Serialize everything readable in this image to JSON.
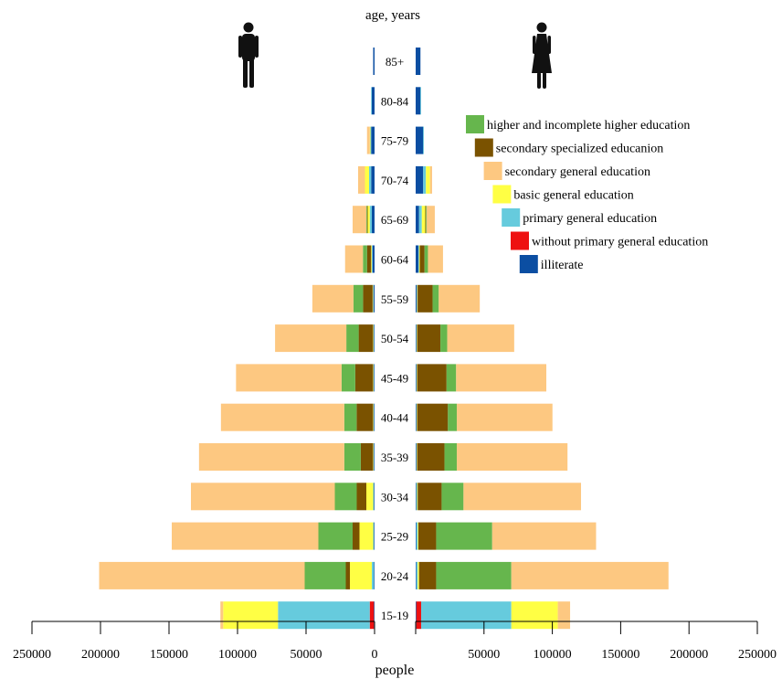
{
  "chart_data": {
    "type": "bar",
    "orientation": "horizontal",
    "layout": "population-pyramid",
    "title": "age, years",
    "xlabel": "people",
    "x_tick_labels": [
      "250000",
      "200000",
      "150000",
      "100000",
      "50000",
      "0",
      "0",
      "50000",
      "100000",
      "150000",
      "200000",
      "250000"
    ],
    "xlim": [
      0,
      250000
    ],
    "categories": [
      "85+",
      "80-84",
      "75-79",
      "70-74",
      "65-69",
      "60-64",
      "55-59",
      "50-54",
      "45-49",
      "40-44",
      "35-39",
      "30-34",
      "25-29",
      "20-24",
      "15-19"
    ],
    "series": [
      {
        "name": "illiterate",
        "color": "#0b4ea2",
        "left": [
          1000,
          2000,
          2500,
          2500,
          2000,
          1500,
          800,
          500,
          500,
          500,
          500,
          500,
          500,
          500,
          500
        ],
        "right": [
          3500,
          3500,
          5500,
          5500,
          2500,
          2000,
          800,
          500,
          500,
          500,
          500,
          500,
          500,
          500,
          500
        ]
      },
      {
        "name": "without primary general education",
        "color": "#ee1111",
        "left": [
          0,
          0,
          0,
          0,
          0,
          0,
          0,
          0,
          0,
          0,
          0,
          0,
          0,
          0,
          3000
        ],
        "right": [
          0,
          0,
          0,
          0,
          0,
          0,
          0,
          0,
          0,
          0,
          0,
          0,
          0,
          0,
          3500
        ]
      },
      {
        "name": "primary general education",
        "color": "#66cbdd",
        "left": [
          0,
          500,
          500,
          1500,
          1500,
          500,
          300,
          300,
          300,
          300,
          300,
          500,
          500,
          1500,
          67000
        ],
        "right": [
          0,
          500,
          500,
          2000,
          2000,
          500,
          300,
          300,
          300,
          300,
          300,
          500,
          1000,
          1000,
          66000
        ]
      },
      {
        "name": "basic general education",
        "color": "#ffff44",
        "left": [
          0,
          0,
          500,
          3000,
          1500,
          500,
          300,
          300,
          300,
          300,
          300,
          5000,
          10000,
          16000,
          40000
        ],
        "right": [
          0,
          0,
          0,
          3000,
          2500,
          500,
          300,
          300,
          300,
          300,
          300,
          500,
          500,
          1000,
          34000
        ]
      },
      {
        "name": "secondary specialized educanion",
        "color": "#7a5200",
        "left": [
          0,
          0,
          0,
          0,
          500,
          3000,
          7000,
          10500,
          13000,
          12000,
          9000,
          7000,
          5000,
          3000,
          0
        ],
        "right": [
          0,
          0,
          0,
          0,
          500,
          3500,
          11000,
          17000,
          21500,
          22500,
          20000,
          17500,
          13000,
          12500,
          0
        ]
      },
      {
        "name": "higher and incomplete higher education",
        "color": "#66b64d",
        "left": [
          0,
          0,
          0,
          0,
          500,
          3000,
          7000,
          9000,
          10000,
          9000,
          12000,
          16000,
          25000,
          30000,
          0
        ],
        "right": [
          0,
          0,
          0,
          0,
          500,
          2500,
          4500,
          5000,
          7000,
          6500,
          9000,
          16000,
          41000,
          55000,
          0
        ]
      },
      {
        "name": "secondary general education",
        "color": "#fdc881",
        "left": [
          0,
          0,
          2000,
          5000,
          10000,
          13000,
          30000,
          52000,
          77000,
          90000,
          106000,
          105000,
          107000,
          150000,
          2000
        ],
        "right": [
          0,
          0,
          0,
          1500,
          6000,
          11000,
          30000,
          49000,
          66000,
          70000,
          81000,
          86000,
          76000,
          115000,
          9000
        ]
      }
    ],
    "legend": {
      "position": "right"
    },
    "grid": false
  }
}
